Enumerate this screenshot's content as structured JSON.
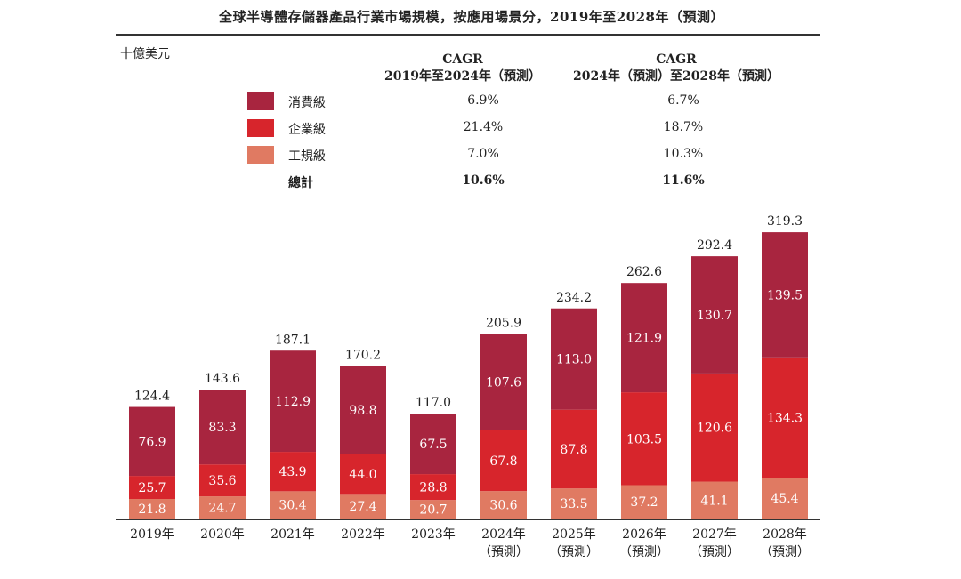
{
  "title": "全球半導體存儲器產品行業市場規模，按應用場景分，2019年至2028年（預測）",
  "unit": "十億美元",
  "cagr_headers": [
    {
      "line1": "CAGR",
      "line2": "2019年至2024年（預測）"
    },
    {
      "line1": "CAGR",
      "line2": "2024年（預測）至2028年（預測）"
    }
  ],
  "legend": [
    {
      "label": "消費級",
      "cagr1": "6.9%",
      "cagr2": "6.7%",
      "color": "#A8253F"
    },
    {
      "label": "企業級",
      "cagr1": "21.4%",
      "cagr2": "18.7%",
      "color": "#D7252C"
    },
    {
      "label": "工規級",
      "cagr1": "7.0%",
      "cagr2": "10.3%",
      "color": "#E07A62"
    },
    {
      "label": "總計",
      "cagr1": "10.6%",
      "cagr2": "11.6%",
      "color": ""
    }
  ],
  "chart_data": {
    "type": "bar",
    "stacked": true,
    "categories": [
      [
        "2019年"
      ],
      [
        "2020年"
      ],
      [
        "2021年"
      ],
      [
        "2022年"
      ],
      [
        "2023年"
      ],
      [
        "2024年",
        "（預測）"
      ],
      [
        "2025年",
        "（預測）"
      ],
      [
        "2026年",
        "（預測）"
      ],
      [
        "2027年",
        "（預測）"
      ],
      [
        "2028年",
        "（預測）"
      ]
    ],
    "series": [
      {
        "name": "工規級",
        "color": "#E07A62",
        "values": [
          21.8,
          24.7,
          30.4,
          27.4,
          20.7,
          30.6,
          33.5,
          37.2,
          41.1,
          45.4
        ]
      },
      {
        "name": "企業級",
        "color": "#D7252C",
        "values": [
          25.7,
          35.6,
          43.9,
          44.0,
          28.8,
          67.8,
          87.8,
          103.5,
          120.6,
          134.3
        ]
      },
      {
        "name": "消費級",
        "color": "#A8253F",
        "values": [
          76.9,
          83.3,
          112.9,
          98.8,
          67.5,
          107.6,
          113.0,
          121.9,
          130.7,
          139.5
        ]
      }
    ],
    "totals": [
      124.4,
      143.6,
      187.1,
      170.2,
      117.0,
      205.9,
      234.2,
      262.6,
      292.4,
      319.3
    ],
    "ylim": [
      0,
      319.3
    ],
    "grid": false,
    "legend_position": "top"
  }
}
